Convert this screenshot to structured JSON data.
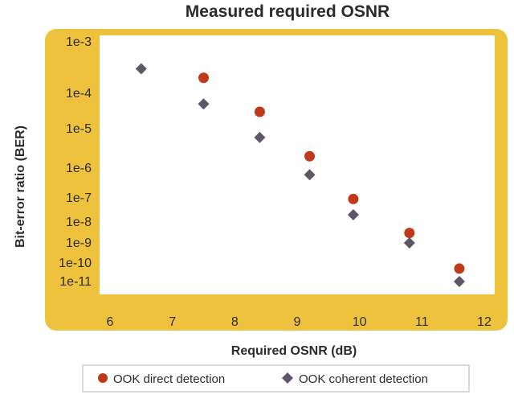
{
  "chart_data": {
    "type": "scatter",
    "title": "Measured required OSNR",
    "xlabel": "Required OSNR (dB)",
    "ylabel": "Bit-error ratio (BER)",
    "xlim": [
      6,
      12
    ],
    "x_ticks": [
      "6",
      "7",
      "8",
      "9",
      "10",
      "11",
      "12"
    ],
    "y_scale": "log",
    "y_ticks": [
      "1e-3",
      "1e-4",
      "1e-5",
      "1e-6",
      "1e-7",
      "1e-8",
      "1e-9",
      "1e-10",
      "1e-11"
    ],
    "grid": false,
    "legend_position": "bottom",
    "frame_color": "#EFC23D",
    "plot_background": "#FFFFFF",
    "series": [
      {
        "name": "OOK direct detection",
        "marker": "circle",
        "color": "#C0391B",
        "points": [
          {
            "x": 7.5,
            "y": 0.0002
          },
          {
            "x": 8.4,
            "y": 3e-05
          },
          {
            "x": 9.2,
            "y": 2e-06
          },
          {
            "x": 9.9,
            "y": 9e-08
          },
          {
            "x": 10.8,
            "y": 3e-09
          },
          {
            "x": 11.6,
            "y": 5e-11
          }
        ]
      },
      {
        "name": "OOK coherent detection",
        "marker": "diamond",
        "color": "#5E5667",
        "points": [
          {
            "x": 6.5,
            "y": 0.0003
          },
          {
            "x": 7.5,
            "y": 5e-05
          },
          {
            "x": 8.4,
            "y": 6e-06
          },
          {
            "x": 9.2,
            "y": 6e-07
          },
          {
            "x": 9.9,
            "y": 2e-08
          },
          {
            "x": 10.8,
            "y": 1e-09
          },
          {
            "x": 11.6,
            "y": 1e-11
          }
        ]
      }
    ]
  }
}
